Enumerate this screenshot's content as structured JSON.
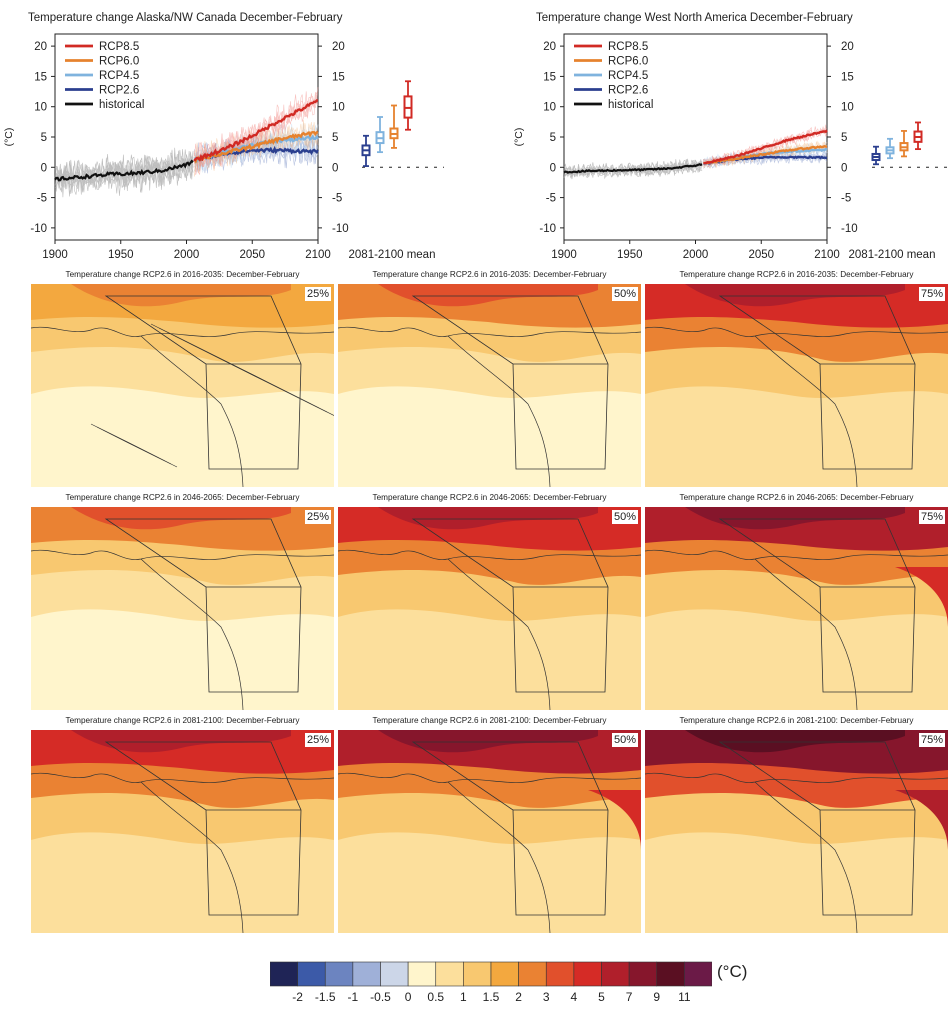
{
  "timeseries_panels": [
    {
      "title": "Temperature change Alaska/NW Canada December-February",
      "ylabel": "(°C)",
      "x_ticks": [
        "1900",
        "1950",
        "2000",
        "2050",
        "2100"
      ],
      "y_ticks": [
        "-10",
        "-5",
        "0",
        "5",
        "10",
        "15",
        "20"
      ],
      "boxplot_label": "2081-2100 mean",
      "legend": [
        "RCP8.5",
        "RCP6.0",
        "RCP4.5",
        "RCP2.6",
        "historical"
      ]
    },
    {
      "title": "Temperature change West North America December-February",
      "ylabel": "(°C)",
      "x_ticks": [
        "1900",
        "1950",
        "2000",
        "2050",
        "2100"
      ],
      "y_ticks": [
        "-10",
        "-5",
        "0",
        "5",
        "10",
        "15",
        "20"
      ],
      "boxplot_label": "2081-2100 mean",
      "legend": [
        "RCP8.5",
        "RCP6.0",
        "RCP4.5",
        "RCP2.6",
        "historical"
      ]
    }
  ],
  "map_rows": [
    {
      "title": "Temperature change RCP2.6 in 2016-2035: December-February"
    },
    {
      "title": "Temperature change RCP2.6 in 2046-2065: December-February"
    },
    {
      "title": "Temperature change RCP2.6 in 2081-2100: December-February"
    }
  ],
  "percentiles": [
    "25%",
    "50%",
    "75%"
  ],
  "colorbar": {
    "unit": "(°C)",
    "labels": [
      "-2",
      "-1.5",
      "-1",
      "-0.5",
      "0",
      "0.5",
      "1",
      "1.5",
      "2",
      "3",
      "4",
      "5",
      "7",
      "9",
      "11"
    ],
    "colors": [
      "#1f2456",
      "#3c5aa8",
      "#6c84c0",
      "#9fb0d8",
      "#ccd6e8",
      "#fff5cc",
      "#fcdf9c",
      "#f8c870",
      "#f3a83f",
      "#ea8233",
      "#e1502c",
      "#d52b26",
      "#b01f2b",
      "#86162c",
      "#5a0f22",
      "#6b1a47"
    ]
  },
  "chart_data": [
    {
      "type": "line",
      "title": "Temperature change Alaska/NW Canada December-February",
      "xlabel": "",
      "ylabel": "(°C)",
      "xlim": [
        1900,
        2100
      ],
      "ylim": [
        -12,
        22
      ],
      "series": [
        {
          "name": "historical",
          "color": "#111111",
          "x": [
            1900,
            1920,
            1940,
            1960,
            1980,
            2000,
            2005
          ],
          "y": [
            -2,
            -1.6,
            -1.2,
            -1.0,
            -0.6,
            0.4,
            1.0
          ]
        },
        {
          "name": "RCP2.6",
          "color": "#2b3f8f",
          "x": [
            2006,
            2030,
            2050,
            2070,
            2100
          ],
          "y": [
            1.2,
            2.3,
            2.8,
            2.8,
            2.6
          ]
        },
        {
          "name": "RCP4.5",
          "color": "#7fb3de",
          "x": [
            2006,
            2030,
            2050,
            2070,
            2100
          ],
          "y": [
            1.2,
            2.6,
            3.7,
            4.4,
            4.9
          ]
        },
        {
          "name": "RCP6.0",
          "color": "#e6822e",
          "x": [
            2006,
            2030,
            2050,
            2070,
            2100
          ],
          "y": [
            1.2,
            2.4,
            3.4,
            4.6,
            5.8
          ]
        },
        {
          "name": "RCP8.5",
          "color": "#d12a24",
          "x": [
            2006,
            2030,
            2050,
            2070,
            2100
          ],
          "y": [
            1.2,
            3.1,
            5.2,
            7.6,
            11.0
          ]
        }
      ],
      "boxplots": [
        {
          "name": "RCP2.6",
          "color": "#2b3f8f",
          "min": 0.2,
          "q1": 2.0,
          "median": 2.8,
          "q3": 3.6,
          "max": 5.2
        },
        {
          "name": "RCP4.5",
          "color": "#7fb3de",
          "min": 2.5,
          "q1": 4.0,
          "median": 4.8,
          "q3": 5.8,
          "max": 8.3
        },
        {
          "name": "RCP6.0",
          "color": "#e6822e",
          "min": 3.2,
          "q1": 4.8,
          "median": 5.5,
          "q3": 6.4,
          "max": 10.2
        },
        {
          "name": "RCP8.5",
          "color": "#d12a24",
          "min": 6.2,
          "q1": 8.2,
          "median": 9.8,
          "q3": 11.7,
          "max": 14.2
        }
      ]
    },
    {
      "type": "line",
      "title": "Temperature change West North America December-February",
      "xlabel": "",
      "ylabel": "(°C)",
      "xlim": [
        1900,
        2100
      ],
      "ylim": [
        -12,
        22
      ],
      "series": [
        {
          "name": "historical",
          "color": "#111111",
          "x": [
            1900,
            1920,
            1940,
            1960,
            1980,
            2000,
            2005
          ],
          "y": [
            -0.8,
            -0.6,
            -0.5,
            -0.4,
            -0.2,
            0.3,
            0.5
          ]
        },
        {
          "name": "RCP2.6",
          "color": "#2b3f8f",
          "x": [
            2006,
            2030,
            2050,
            2070,
            2100
          ],
          "y": [
            0.6,
            1.3,
            1.6,
            1.7,
            1.6
          ]
        },
        {
          "name": "RCP4.5",
          "color": "#7fb3de",
          "x": [
            2006,
            2030,
            2050,
            2070,
            2100
          ],
          "y": [
            0.6,
            1.5,
            2.2,
            2.6,
            2.9
          ]
        },
        {
          "name": "RCP6.0",
          "color": "#e6822e",
          "x": [
            2006,
            2030,
            2050,
            2070,
            2100
          ],
          "y": [
            0.6,
            1.4,
            2.1,
            2.8,
            3.5
          ]
        },
        {
          "name": "RCP8.5",
          "color": "#d12a24",
          "x": [
            2006,
            2030,
            2050,
            2070,
            2100
          ],
          "y": [
            0.6,
            1.8,
            3.1,
            4.5,
            6.0
          ]
        }
      ],
      "boxplots": [
        {
          "name": "RCP2.6",
          "color": "#2b3f8f",
          "min": 0.5,
          "q1": 1.2,
          "median": 1.7,
          "q3": 2.2,
          "max": 3.4
        },
        {
          "name": "RCP4.5",
          "color": "#7fb3de",
          "min": 1.5,
          "q1": 2.3,
          "median": 2.8,
          "q3": 3.3,
          "max": 4.7
        },
        {
          "name": "RCP6.0",
          "color": "#e6822e",
          "min": 1.8,
          "q1": 2.8,
          "median": 3.3,
          "q3": 4.0,
          "max": 6.0
        },
        {
          "name": "RCP8.5",
          "color": "#d12a24",
          "min": 3.0,
          "q1": 4.2,
          "median": 5.0,
          "q3": 5.9,
          "max": 7.4
        }
      ]
    }
  ]
}
